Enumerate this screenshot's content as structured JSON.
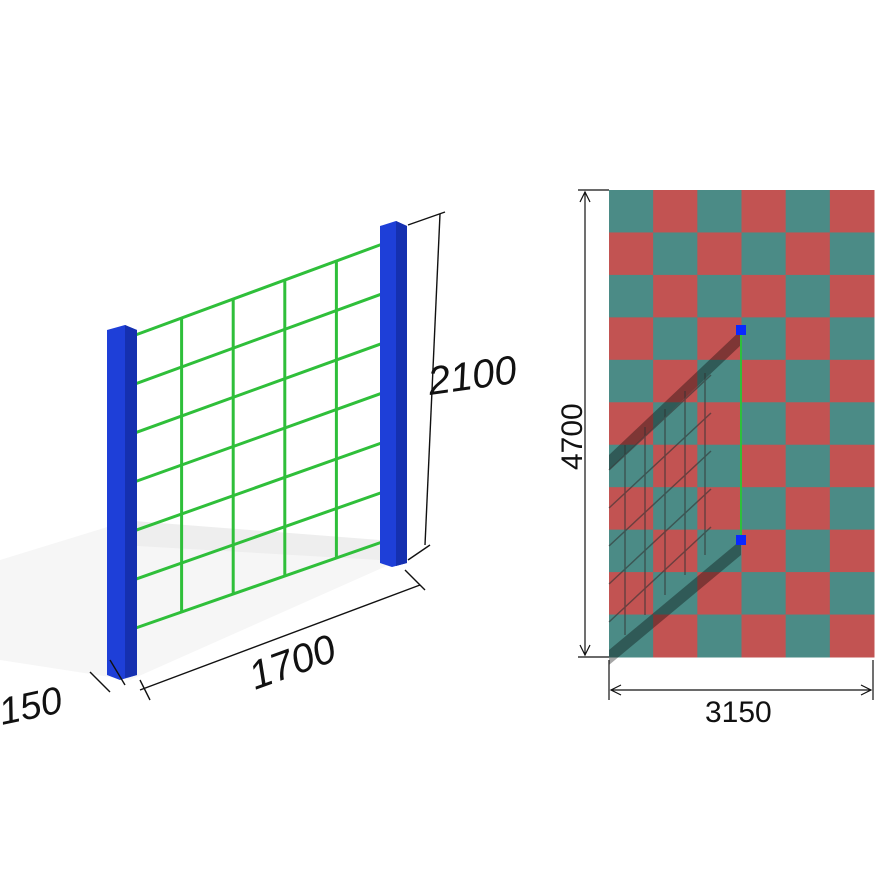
{
  "dimensions": {
    "height": "2100",
    "length": "1700",
    "depth": "150",
    "area_height": "4700",
    "area_width": "3150"
  },
  "colors": {
    "post": "#1e3fd8",
    "net": "#2fbf3a",
    "tile_a": "#4b8b86",
    "tile_b": "#c25352",
    "marker": "#0a28ff"
  },
  "safety_zone": {
    "columns": 6,
    "rows": 11
  }
}
